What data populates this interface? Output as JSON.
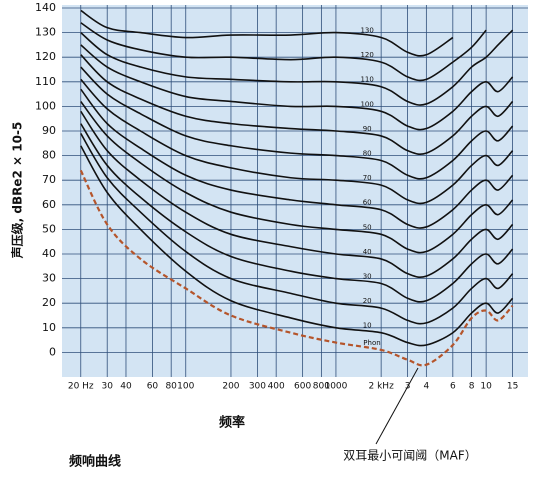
{
  "chart_data": {
    "type": "line",
    "y_label": "声压级, dBRe2 × 10-5",
    "x_label": "频率",
    "caption": "频响曲线",
    "unit_label": "Phon",
    "log_x": true,
    "grid": true,
    "background": "#d3e4f3",
    "xlim": [
      15,
      19000
    ],
    "ylim": [
      -10,
      140
    ],
    "xticks": [
      {
        "value": 20,
        "label": "20 Hz"
      },
      30,
      40,
      60,
      80,
      100,
      200,
      300,
      400,
      600,
      800,
      1000,
      {
        "value": 2000,
        "label": "2 kHz"
      },
      {
        "value": 3000,
        "label": "3"
      },
      {
        "value": 4000,
        "label": "4"
      },
      {
        "value": 6000,
        "label": "6"
      },
      {
        "value": 8000,
        "label": "8"
      },
      {
        "value": 10000,
        "label": "10"
      },
      {
        "value": 15000,
        "label": "15"
      }
    ],
    "yticks": [
      0,
      10,
      20,
      30,
      40,
      50,
      60,
      70,
      80,
      90,
      100,
      110,
      120,
      130,
      140
    ],
    "x": [
      20,
      30,
      50,
      100,
      200,
      500,
      1000,
      2000,
      3000,
      4000,
      6000,
      8000,
      10000,
      12000,
      15000
    ],
    "series": [
      {
        "name": "10",
        "color": "#111111",
        "values": [
          84,
          65,
          50,
          33,
          21,
          14,
          10,
          8,
          4,
          3,
          8,
          16,
          20,
          16,
          22
        ]
      },
      {
        "name": "20",
        "color": "#111111",
        "values": [
          89,
          71,
          57,
          41,
          30,
          24,
          20,
          18,
          13,
          12,
          18,
          26,
          30,
          26,
          32
        ]
      },
      {
        "name": "30",
        "color": "#111111",
        "values": [
          93,
          76,
          63,
          49,
          39,
          33,
          30,
          28,
          22,
          21,
          28,
          36,
          40,
          36,
          42
        ]
      },
      {
        "name": "40",
        "color": "#111111",
        "values": [
          98,
          82,
          70,
          57,
          48,
          43,
          40,
          38,
          32,
          31,
          38,
          46,
          50,
          46,
          52
        ]
      },
      {
        "name": "50",
        "color": "#111111",
        "values": [
          102,
          88,
          77,
          65,
          57,
          52,
          50,
          48,
          42,
          41,
          48,
          56,
          60,
          56,
          62
        ]
      },
      {
        "name": "60",
        "color": "#111111",
        "values": [
          107,
          93,
          83,
          72,
          66,
          62,
          60,
          58,
          52,
          51,
          58,
          66,
          70,
          66,
          72
        ]
      },
      {
        "name": "70",
        "color": "#111111",
        "values": [
          111,
          99,
          90,
          80,
          75,
          71,
          70,
          68,
          62,
          61,
          68,
          76,
          80,
          76,
          82
        ]
      },
      {
        "name": "80",
        "color": "#111111",
        "values": [
          116,
          105,
          97,
          88,
          84,
          81,
          80,
          78,
          72,
          71,
          78,
          86,
          90,
          86,
          92
        ]
      },
      {
        "name": "90",
        "color": "#111111",
        "values": [
          121,
          110,
          103,
          96,
          93,
          91,
          90,
          88,
          82,
          81,
          88,
          96,
          100,
          96,
          102
        ]
      },
      {
        "name": "100",
        "color": "#111111",
        "values": [
          125,
          116,
          110,
          104,
          102,
          100,
          100,
          98,
          92,
          91,
          98,
          106,
          110,
          106,
          112
        ]
      },
      {
        "name": "110",
        "color": "#111111",
        "values": [
          130,
          121,
          116,
          112,
          111,
          110,
          110,
          108,
          102,
          101,
          108,
          116,
          120,
          125,
          131
        ]
      },
      {
        "name": "120",
        "color": "#111111",
        "values": [
          134,
          127,
          123,
          120,
          120,
          119,
          120,
          118,
          112,
          111,
          118,
          124,
          131,
          null,
          null
        ]
      },
      {
        "name": "130",
        "color": "#111111",
        "values": [
          139,
          132,
          130,
          128,
          129,
          129,
          130,
          128,
          122,
          121,
          128,
          null,
          null,
          null,
          null
        ]
      },
      {
        "name": "双耳最小可闻阈（MAF）",
        "color": "#b5552b",
        "dashed": true,
        "values": [
          74,
          52,
          38,
          26,
          15,
          8,
          4,
          1,
          -3,
          -5,
          3,
          14,
          17,
          13,
          19
        ]
      }
    ]
  }
}
